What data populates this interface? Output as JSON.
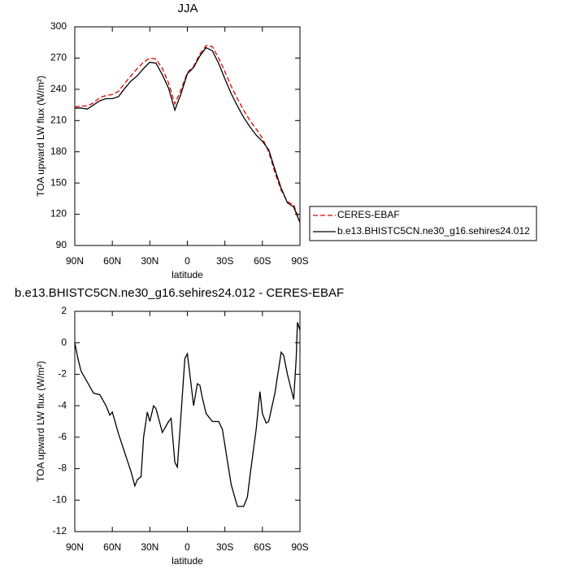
{
  "chart_data": [
    {
      "type": "line",
      "title": "JJA",
      "x_label": "latitude",
      "y_label": "TOA upward LW flux (W/m²)",
      "x": [
        90,
        85,
        80,
        75,
        70,
        65,
        60,
        55,
        50,
        45,
        40,
        35,
        30,
        25,
        20,
        15,
        10,
        5,
        0,
        -5,
        -10,
        -15,
        -20,
        -25,
        -30,
        -35,
        -40,
        -45,
        -50,
        -55,
        -60,
        -65,
        -70,
        -75,
        -80,
        -85,
        -90
      ],
      "series": [
        {
          "name": "CERES-EBAF",
          "color": "#e00000",
          "linestyle": "dashed",
          "values": [
            223,
            224,
            224,
            227,
            232,
            234,
            235,
            238,
            246,
            253,
            260,
            266,
            270,
            269,
            260,
            246,
            226,
            240,
            256,
            262,
            274,
            282,
            281,
            270,
            257,
            243,
            231,
            220,
            210,
            202,
            193,
            180,
            160,
            143,
            132,
            129,
            113
          ]
        },
        {
          "name": "b.e13.BHISTC5CN.ne30_g16.sehires24.012",
          "color": "#000000",
          "linestyle": "solid",
          "values": [
            222,
            222,
            221,
            225,
            229,
            231,
            231,
            233,
            241,
            248,
            253,
            260,
            266,
            265,
            254,
            241,
            220,
            236,
            255,
            261,
            272,
            280,
            277,
            265,
            250,
            236,
            224,
            213,
            204,
            196,
            190,
            182,
            163,
            145,
            131,
            127,
            112
          ]
        }
      ],
      "xlim": [
        90,
        -90
      ],
      "xticks": [
        {
          "value": 90,
          "label": "90N"
        },
        {
          "value": 60,
          "label": "60N"
        },
        {
          "value": 30,
          "label": "30N"
        },
        0,
        {
          "value": -30,
          "label": "30S"
        },
        {
          "value": -60,
          "label": "60S"
        },
        {
          "value": -90,
          "label": "90S"
        }
      ],
      "ylim": [
        90,
        300
      ],
      "yticks": [
        90,
        120,
        150,
        180,
        210,
        240,
        270,
        300
      ],
      "legend": "right"
    },
    {
      "type": "line",
      "title": "b.e13.BHISTC5CN.ne30_g16.sehires24.012 - CERES-EBAF",
      "x_label": "latitude",
      "y_label": "TOA upward LW flux (W/m²)",
      "x": [
        90,
        87.5,
        85,
        80,
        75,
        70,
        65,
        62,
        60,
        55,
        50,
        45,
        42,
        40,
        37,
        35,
        32,
        30,
        27,
        25,
        20,
        15,
        13,
        10,
        8,
        5,
        2,
        0,
        -2,
        -5,
        -8,
        -10,
        -12,
        -15,
        -20,
        -25,
        -28,
        -30,
        -35,
        -40,
        -45,
        -48,
        -50,
        -55,
        -58,
        -60,
        -63,
        -65,
        -70,
        -75,
        -77,
        -80,
        -85,
        -87,
        -88,
        -90
      ],
      "values": [
        0,
        -1,
        -1.8,
        -2.5,
        -3.2,
        -3.3,
        -4,
        -4.6,
        -4.4,
        -5.8,
        -7,
        -8.2,
        -9.1,
        -8.7,
        -8.5,
        -6,
        -4.4,
        -5,
        -4,
        -4.2,
        -5.7,
        -5,
        -4.8,
        -7.6,
        -7.9,
        -4.5,
        -1,
        -0.7,
        -2,
        -4,
        -2.6,
        -2.7,
        -3.5,
        -4.5,
        -5,
        -5,
        -5.5,
        -6.5,
        -9,
        -10.4,
        -10.4,
        -9.8,
        -8.5,
        -5.5,
        -3.1,
        -4.5,
        -5.1,
        -5,
        -3.2,
        -0.6,
        -0.8,
        -2,
        -3.6,
        -1,
        1.3,
        0.8
      ],
      "color": "#000000",
      "xlim": [
        90,
        -90
      ],
      "xticks": [
        {
          "value": 90,
          "label": "90N"
        },
        {
          "value": 60,
          "label": "60N"
        },
        {
          "value": 30,
          "label": "30N"
        },
        0,
        {
          "value": -30,
          "label": "30S"
        },
        {
          "value": -60,
          "label": "60S"
        },
        {
          "value": -90,
          "label": "90S"
        }
      ],
      "ylim": [
        -12,
        2
      ],
      "yticks": [
        -12,
        -10,
        -8,
        -6,
        -4,
        -2,
        0,
        2
      ]
    }
  ]
}
